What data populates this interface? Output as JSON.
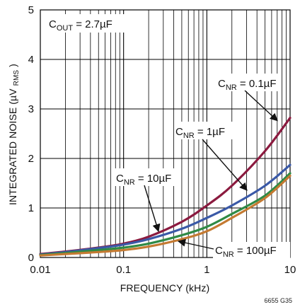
{
  "chart_data": {
    "type": "line",
    "title": "",
    "xlabel": "FREQUENCY (kHz)",
    "ylabel": {
      "prefix": "INTEGRATED NOISE (µV",
      "sub": "RMS",
      "suffix": ")"
    },
    "xscale": "log",
    "xlim": [
      0.01,
      10
    ],
    "ylim": [
      0,
      5
    ],
    "grid": true,
    "x_ticks": [
      {
        "value": 0.01,
        "label": "0.01"
      },
      {
        "value": 0.1,
        "label": "0.1"
      },
      {
        "value": 1,
        "label": "1"
      },
      {
        "value": 10,
        "label": "10"
      }
    ],
    "y_ticks": [
      {
        "value": 0,
        "label": "0"
      },
      {
        "value": 1,
        "label": "1"
      },
      {
        "value": 2,
        "label": "2"
      },
      {
        "value": 3,
        "label": "3"
      },
      {
        "value": 4,
        "label": "4"
      },
      {
        "value": 5,
        "label": "5"
      }
    ],
    "x": [
      0.01,
      0.02,
      0.05,
      0.1,
      0.2,
      0.5,
      1,
      2,
      5,
      10
    ],
    "series": [
      {
        "key": "cnr-0-1uf",
        "color": "#8b1a3f",
        "values": [
          0.07,
          0.12,
          0.2,
          0.28,
          0.42,
          0.72,
          1.05,
          1.45,
          2.15,
          2.82
        ]
      },
      {
        "key": "cnr-1uf",
        "color": "#3a59a7",
        "values": [
          0.06,
          0.11,
          0.19,
          0.26,
          0.37,
          0.58,
          0.8,
          1.05,
          1.45,
          1.87
        ]
      },
      {
        "key": "cnr-10uf",
        "color": "#2f8a45",
        "values": [
          0.05,
          0.09,
          0.15,
          0.2,
          0.28,
          0.45,
          0.62,
          0.88,
          1.25,
          1.7
        ]
      },
      {
        "key": "cnr-100uf",
        "color": "#c47a32",
        "values": [
          0.04,
          0.07,
          0.11,
          0.15,
          0.22,
          0.37,
          0.53,
          0.8,
          1.2,
          1.65
        ]
      }
    ],
    "annotations": [
      {
        "key": "cout",
        "main": "C",
        "sub": "OUT",
        "suffix": " = 2.7µF"
      },
      {
        "key": "cnr-0-1uf",
        "main": "C",
        "sub": "NR",
        "suffix": " = 0.1µF",
        "arrow_to": [
          10,
          2.82
        ]
      },
      {
        "key": "cnr-1uf",
        "main": "C",
        "sub": "NR",
        "suffix": " = 1µF",
        "arrow_to": [
          3,
          1.12
        ]
      },
      {
        "key": "cnr-10uf",
        "main": "C",
        "sub": "NR",
        "suffix": " = 10µF",
        "arrow_to": [
          0.22,
          0.42
        ]
      },
      {
        "key": "cnr-100uf",
        "main": "C",
        "sub": "NR",
        "suffix": " = 100µF",
        "arrow_to": [
          0.7,
          0.35
        ]
      }
    ],
    "figure_id": "6655 G35"
  }
}
